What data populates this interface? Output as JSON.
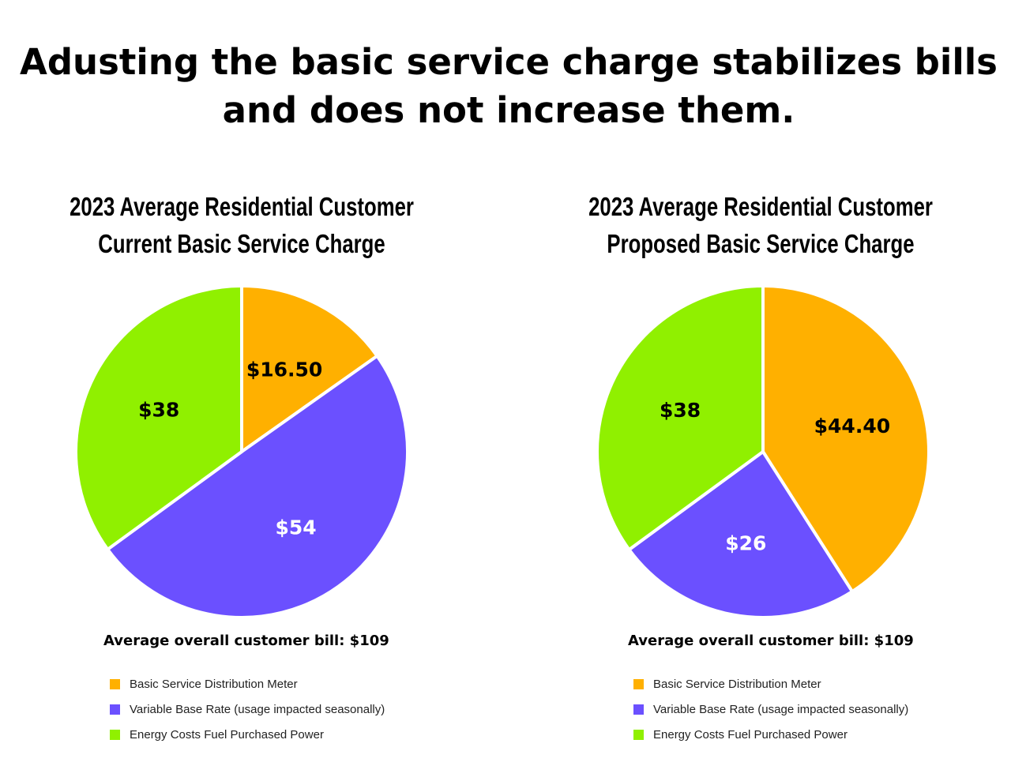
{
  "title_line1": "Adusting the basic service charge stabilizes bills",
  "title_line2": "and does not increase them.",
  "colors": {
    "basic": "#FFB000",
    "variable": "#6B50FF",
    "energy": "#90F000"
  },
  "chart_data": [
    {
      "type": "pie",
      "title_line1": "2023 Average Residential Customer",
      "title_line2": "Current Basic Service Charge",
      "slices": [
        {
          "name": "Basic Service Distribution Meter",
          "value": 16.5,
          "label": "$16.50",
          "color": "#FFB000",
          "label_color": "#000000"
        },
        {
          "name": "Variable Base Rate (usage impacted seasonally)",
          "value": 54,
          "label": "$54",
          "color": "#6B50FF",
          "label_color": "#FFFFFF"
        },
        {
          "name": "Energy Costs Fuel Purchased Power",
          "value": 38,
          "label": "$38",
          "color": "#90F000",
          "label_color": "#000000"
        }
      ],
      "total_text": "Average overall customer bill:  $109",
      "legend": [
        "Basic Service Distribution Meter",
        "Variable Base Rate (usage impacted seasonally)",
        "Energy Costs Fuel Purchased Power"
      ],
      "legend_placement": "bottom"
    },
    {
      "type": "pie",
      "title_line1": "2023 Average Residential Customer",
      "title_line2": "Proposed Basic Service Charge",
      "slices": [
        {
          "name": "Basic Service Distribution Meter",
          "value": 44.4,
          "label": "$44.40",
          "color": "#FFB000",
          "label_color": "#000000"
        },
        {
          "name": "Variable Base Rate (usage impacted seasonally)",
          "value": 26,
          "label": "$26",
          "color": "#6B50FF",
          "label_color": "#FFFFFF"
        },
        {
          "name": "Energy Costs Fuel Purchased Power",
          "value": 38,
          "label": "$38",
          "color": "#90F000",
          "label_color": "#000000"
        }
      ],
      "total_text": "Average overall customer bill:  $109",
      "legend": [
        "Basic Service Distribution Meter",
        "Variable Base Rate (usage impacted seasonally)",
        "Energy Costs Fuel Purchased Power"
      ],
      "legend_placement": "bottom"
    }
  ]
}
